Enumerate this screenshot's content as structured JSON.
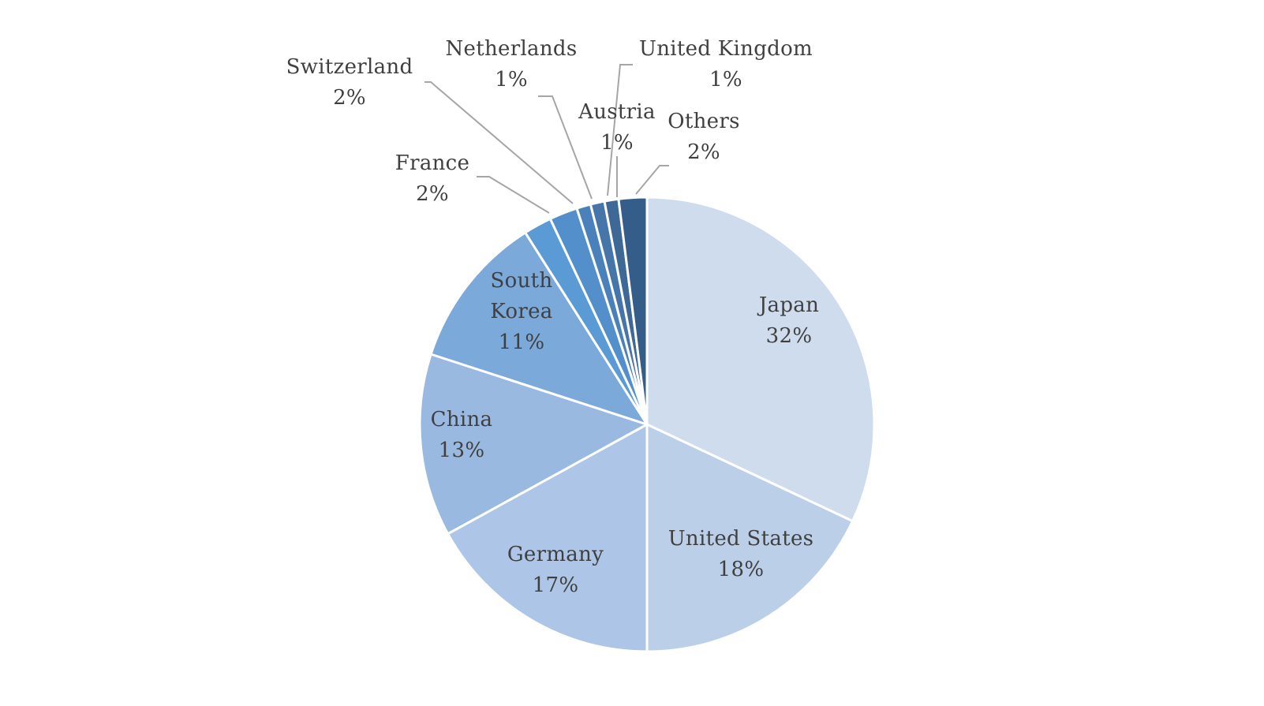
{
  "chart_data": {
    "type": "pie",
    "start_angle_deg": 0,
    "direction": "clockwise",
    "slices": [
      {
        "name": "Japan",
        "value": 32,
        "value_label": "32%",
        "color": "#cfdcee"
      },
      {
        "name": "United States",
        "value": 18,
        "value_label": "18%",
        "color": "#bccfe9"
      },
      {
        "name": "Germany",
        "value": 17,
        "value_label": "17%",
        "color": "#adc5e6"
      },
      {
        "name": "China",
        "value": 13,
        "value_label": "13%",
        "color": "#99b9e1"
      },
      {
        "name": "South Korea",
        "value": 11,
        "value_label": "11%",
        "color": "#7aa9da"
      },
      {
        "name": "France",
        "value": 2,
        "value_label": "2%",
        "color": "#5b9bd5"
      },
      {
        "name": "Switzerland",
        "value": 2,
        "value_label": "2%",
        "color": "#538fcb"
      },
      {
        "name": "Netherlands",
        "value": 1,
        "value_label": "1%",
        "color": "#4b81bb"
      },
      {
        "name": "Austria",
        "value": 1,
        "value_label": "1%",
        "color": "#4575a9"
      },
      {
        "name": "United Kingdom",
        "value": 1,
        "value_label": "1%",
        "color": "#3e6997"
      },
      {
        "name": "Others",
        "value": 2,
        "value_label": "2%",
        "color": "#345d8a"
      }
    ]
  }
}
